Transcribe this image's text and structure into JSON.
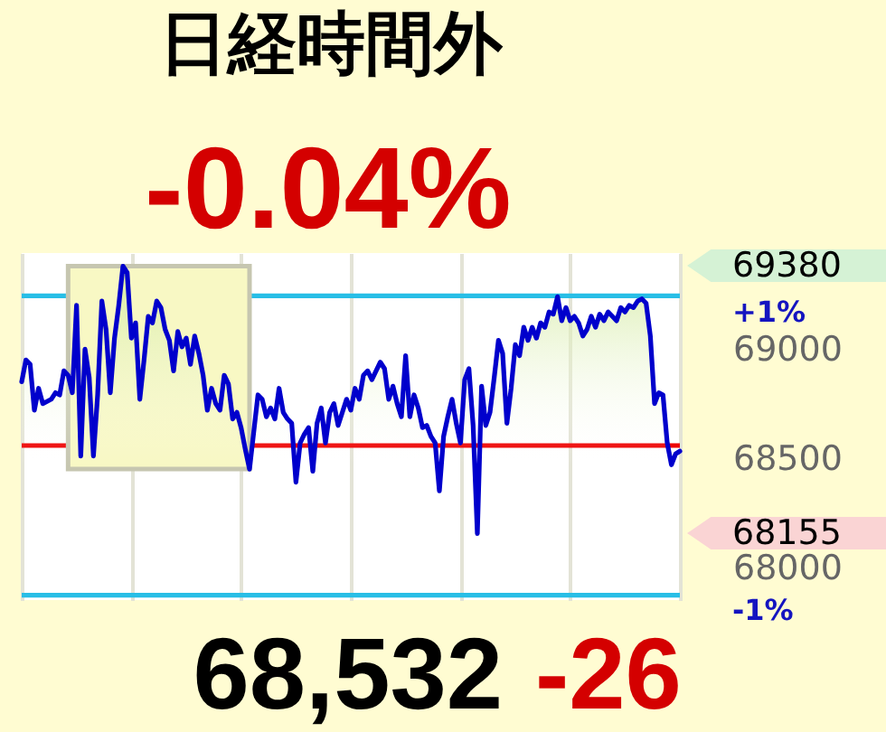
{
  "chart_data": {
    "type": "area",
    "title": "日経時間外",
    "annotations": [
      "-0.04%",
      "69380",
      "+1%",
      "68155",
      "-1%",
      "68,532",
      "-26"
    ],
    "categories": [
      null,
      null,
      null,
      null,
      null,
      null,
      null,
      null,
      null,
      null,
      null,
      null,
      null,
      null,
      null,
      null,
      null,
      null,
      null,
      null,
      null,
      null,
      null,
      null,
      null,
      null,
      null,
      null,
      null,
      null,
      null,
      null,
      null,
      null,
      null,
      null,
      null,
      null,
      null,
      null,
      null,
      null,
      null,
      null,
      null,
      null,
      null,
      null,
      null,
      null,
      null,
      null,
      null,
      null,
      null,
      null,
      null,
      null,
      null,
      null,
      null,
      null,
      null,
      null,
      null,
      null,
      null,
      null,
      null,
      null,
      null,
      null,
      null,
      null,
      null,
      null,
      null,
      null,
      null,
      null,
      null,
      null,
      null,
      null,
      null,
      null,
      null,
      null,
      null,
      null,
      null,
      null,
      null,
      null,
      null,
      null,
      null,
      null,
      null,
      null,
      null,
      null,
      null,
      null,
      null,
      null,
      null,
      null,
      null,
      null,
      null,
      null,
      null,
      null,
      null,
      null,
      null,
      null,
      null,
      null,
      null,
      null,
      null,
      null,
      null,
      null,
      null,
      null,
      null,
      null,
      null,
      null,
      null,
      null,
      null,
      null,
      null,
      null,
      null,
      null,
      null,
      null,
      null,
      null,
      null,
      null,
      null,
      null,
      null,
      null,
      null,
      null,
      null,
      null,
      null,
      null,
      null
    ],
    "series": [
      {
        "color": "#0000cc",
        "values": [
          68850,
          68950,
          68930,
          68720,
          68820,
          68750,
          68760,
          68770,
          68800,
          68790,
          68900,
          68880,
          68800,
          69200,
          68510,
          69000,
          68870,
          68510,
          68790,
          69220,
          69090,
          68800,
          69050,
          69200,
          69380,
          69350,
          69050,
          69120,
          68770,
          68950,
          69150,
          69120,
          69220,
          69190,
          69090,
          69040,
          68900,
          69080,
          69010,
          69050,
          68930,
          69060,
          68980,
          68880,
          68720,
          68820,
          68750,
          68720,
          68880,
          68840,
          68680,
          68710,
          68640,
          68540,
          68450,
          68620,
          68790,
          68770,
          68690,
          68730,
          68680,
          68820,
          68710,
          68680,
          68660,
          68390,
          68570,
          68610,
          68640,
          68440,
          68660,
          68730,
          68570,
          68710,
          68750,
          68650,
          68710,
          68770,
          68720,
          68820,
          68770,
          68880,
          68900,
          68860,
          68900,
          68940,
          68910,
          68770,
          68830,
          68750,
          68690,
          68970,
          68690,
          68790,
          68730,
          68640,
          68650,
          68600,
          68570,
          68350,
          68600,
          68690,
          68770,
          68660,
          68570,
          68860,
          68910,
          68650,
          68155,
          68830,
          68650,
          68710,
          68870,
          69040,
          68980,
          68660,
          68820,
          69020,
          68970,
          69100,
          69040,
          69100,
          69050,
          69120,
          69100,
          69170,
          69160,
          69240,
          69130,
          69190,
          69130,
          69150,
          69120,
          69060,
          69090,
          69150,
          69100,
          69160,
          69130,
          69170,
          69150,
          69130,
          69190,
          69170,
          69200,
          69190,
          69220,
          69230,
          69210,
          69060,
          68750,
          68800,
          68790,
          68570,
          68470,
          68520,
          68532
        ]
      }
    ],
    "ylim": [
      67850,
      69440
    ],
    "yticks": [
      69000,
      68500,
      68000
    ],
    "ref_lines": [
      {
        "axis": "y",
        "value": 69244,
        "color": "#28bee6"
      },
      {
        "axis": "y",
        "value": 68558,
        "color": "#ee0000"
      },
      {
        "axis": "y",
        "value": 67872,
        "color": "#28bee6"
      }
    ],
    "grid": "x",
    "tick_labels": "y"
  }
}
